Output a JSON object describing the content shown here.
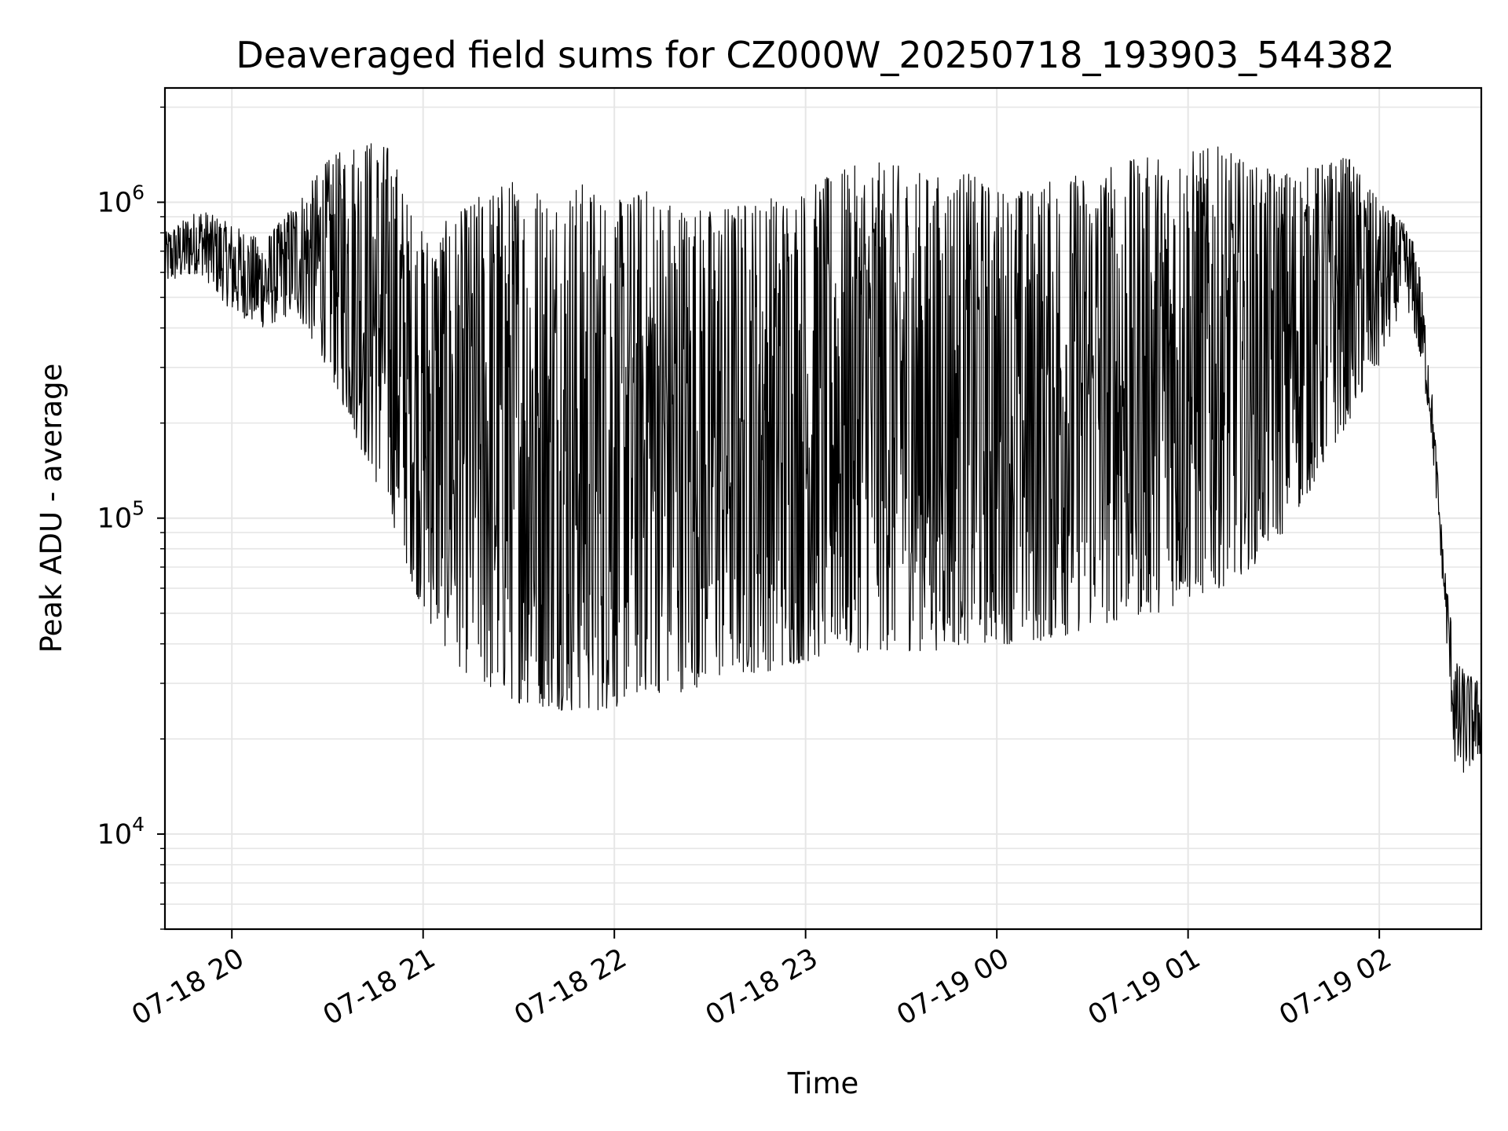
{
  "chart_data": {
    "type": "line",
    "title": "Deaveraged field sums for CZ000W_20250718_193903_544382",
    "xlabel": "Time",
    "ylabel": "Peak ADU - average",
    "yscale": "log",
    "ylim": [
      5000,
      2300000
    ],
    "xlim": [
      "2025-07-18 19:39",
      "2025-07-19 02:32"
    ],
    "grid": true,
    "line_color": "#000000",
    "grid_color": "#e6e6e6",
    "x_ticks": [
      {
        "label": "07-18 20",
        "time": "2025-07-18 20:00"
      },
      {
        "label": "07-18 21",
        "time": "2025-07-18 21:00"
      },
      {
        "label": "07-18 22",
        "time": "2025-07-18 22:00"
      },
      {
        "label": "07-18 23",
        "time": "2025-07-18 23:00"
      },
      {
        "label": "07-19 00",
        "time": "2025-07-19 00:00"
      },
      {
        "label": "07-19 01",
        "time": "2025-07-19 01:00"
      },
      {
        "label": "07-19 02",
        "time": "2025-07-19 02:00"
      }
    ],
    "y_ticks": [
      {
        "base": "10",
        "exp": "4",
        "value": 10000
      },
      {
        "base": "10",
        "exp": "5",
        "value": 100000
      },
      {
        "base": "10",
        "exp": "6",
        "value": 1000000
      }
    ],
    "series": [
      {
        "envelope": {
          "time": [
            "2025-07-18 19:39",
            "2025-07-18 19:50",
            "2025-07-18 20:00",
            "2025-07-18 20:10",
            "2025-07-18 20:20",
            "2025-07-18 20:30",
            "2025-07-18 20:40",
            "2025-07-18 20:50",
            "2025-07-18 20:55",
            "2025-07-18 21:00",
            "2025-07-18 21:10",
            "2025-07-18 21:20",
            "2025-07-18 21:30",
            "2025-07-18 21:40",
            "2025-07-18 21:50",
            "2025-07-18 22:00",
            "2025-07-18 22:10",
            "2025-07-18 22:20",
            "2025-07-18 22:30",
            "2025-07-18 22:40",
            "2025-07-18 22:50",
            "2025-07-18 23:00",
            "2025-07-18 23:10",
            "2025-07-18 23:20",
            "2025-07-18 23:30",
            "2025-07-18 23:40",
            "2025-07-18 23:50",
            "2025-07-19 00:00",
            "2025-07-19 00:10",
            "2025-07-19 00:20",
            "2025-07-19 00:30",
            "2025-07-19 00:40",
            "2025-07-19 00:50",
            "2025-07-19 01:00",
            "2025-07-19 01:10",
            "2025-07-19 01:20",
            "2025-07-19 01:30",
            "2025-07-19 01:40",
            "2025-07-19 01:50",
            "2025-07-19 02:00",
            "2025-07-19 02:08",
            "2025-07-19 02:12",
            "2025-07-19 02:16",
            "2025-07-19 02:20",
            "2025-07-19 02:24",
            "2025-07-19 02:28",
            "2025-07-19 02:32"
          ],
          "low": [
            550000,
            600000,
            450000,
            400000,
            450000,
            300000,
            170000,
            100000,
            70000,
            50000,
            35000,
            28000,
            26000,
            25000,
            24000,
            25000,
            28000,
            28000,
            30000,
            32000,
            33000,
            35000,
            37000,
            38000,
            38000,
            38000,
            40000,
            40000,
            40000,
            42000,
            45000,
            48000,
            50000,
            55000,
            60000,
            70000,
            90000,
            130000,
            200000,
            300000,
            500000,
            350000,
            200000,
            60000,
            15000,
            16000,
            18000
          ],
          "high": [
            800000,
            950000,
            850000,
            750000,
            1000000,
            1350000,
            1600000,
            1500000,
            1000000,
            800000,
            900000,
            1100000,
            1200000,
            1100000,
            1150000,
            1000000,
            1100000,
            1000000,
            950000,
            1000000,
            1050000,
            1100000,
            1250000,
            1350000,
            1300000,
            1200000,
            1250000,
            1100000,
            1100000,
            1200000,
            1250000,
            1350000,
            1400000,
            1450000,
            1500000,
            1300000,
            1250000,
            1300000,
            1400000,
            1000000,
            850000,
            700000,
            300000,
            80000,
            35000,
            32000,
            30000
          ]
        }
      }
    ]
  }
}
